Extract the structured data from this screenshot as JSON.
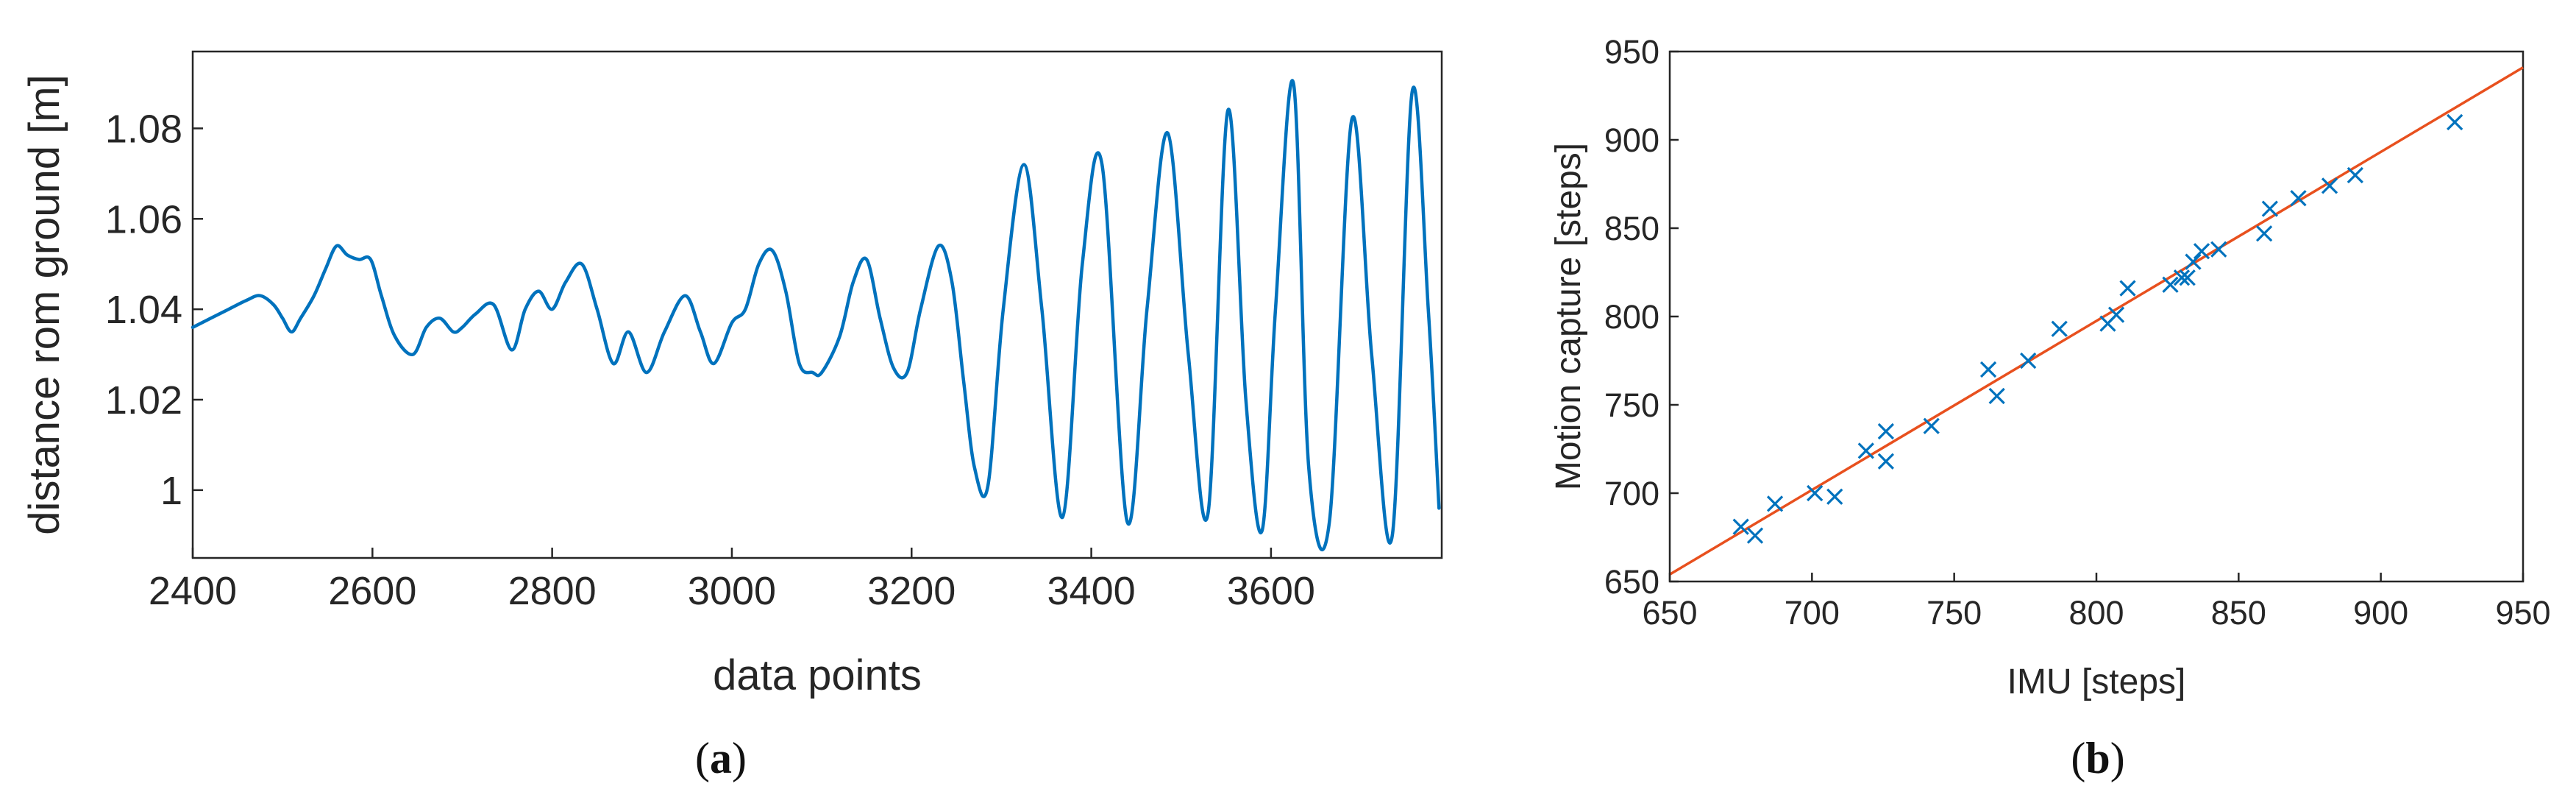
{
  "chart_data": [
    {
      "type": "line",
      "panel_label": "(a)",
      "panel_letter": "a",
      "xlabel": "data points",
      "ylabel": "distance rom ground [m]",
      "xlim": [
        2400,
        3790
      ],
      "ylim": [
        0.985,
        1.097
      ],
      "xticks": [
        2400,
        2600,
        2800,
        3000,
        3200,
        3400,
        3600
      ],
      "xtick_labels": [
        "2400",
        "2600",
        "2800",
        "3000",
        "3200",
        "3400",
        "3600"
      ],
      "yticks": [
        1.0,
        1.02,
        1.04,
        1.06,
        1.08
      ],
      "ytick_labels": [
        "1",
        "1.02",
        "1.04",
        "1.06",
        "1.08"
      ],
      "grid": false,
      "series": [
        {
          "color": "#0072bd",
          "x": [
            2400,
            2420,
            2440,
            2460,
            2475,
            2490,
            2500,
            2510,
            2520,
            2535,
            2548,
            2560,
            2572,
            2585,
            2598,
            2610,
            2625,
            2645,
            2660,
            2675,
            2690,
            2700,
            2715,
            2735,
            2755,
            2770,
            2785,
            2800,
            2815,
            2833,
            2850,
            2868,
            2885,
            2905,
            2925,
            2948,
            2965,
            2980,
            3000,
            3015,
            3030,
            3045,
            3060,
            3075,
            3090,
            3100,
            3120,
            3135,
            3150,
            3165,
            3180,
            3195,
            3210,
            3230,
            3245,
            3258,
            3270,
            3285,
            3302,
            3325,
            3345,
            3368,
            3390,
            3412,
            3440,
            3462,
            3485,
            3508,
            3530,
            3552,
            3572,
            3590,
            3605,
            3625,
            3642,
            3665,
            3690,
            3712,
            3735,
            3757,
            3775,
            3787
          ],
          "y": [
            1.036,
            1.038,
            1.04,
            1.042,
            1.043,
            1.041,
            1.038,
            1.035,
            1.038,
            1.043,
            1.049,
            1.054,
            1.052,
            1.051,
            1.051,
            1.043,
            1.034,
            1.03,
            1.036,
            1.038,
            1.035,
            1.036,
            1.039,
            1.041,
            1.031,
            1.04,
            1.044,
            1.04,
            1.046,
            1.05,
            1.04,
            1.028,
            1.035,
            1.026,
            1.035,
            1.043,
            1.035,
            1.028,
            1.037,
            1.04,
            1.05,
            1.053,
            1.044,
            1.028,
            1.026,
            1.026,
            1.034,
            1.046,
            1.051,
            1.038,
            1.027,
            1.026,
            1.04,
            1.054,
            1.046,
            1.024,
            1.005,
            1.001,
            1.04,
            1.072,
            1.04,
            0.994,
            1.05,
            1.072,
            0.993,
            1.04,
            1.079,
            1.03,
            0.995,
            1.084,
            1.02,
            0.991,
            1.04,
            1.09,
            1.005,
            0.993,
            1.082,
            1.03,
            0.99,
            1.088,
            1.04,
            0.996
          ]
        }
      ]
    },
    {
      "type": "scatter",
      "panel_label": "(b)",
      "panel_letter": "b",
      "xlabel": "IMU [steps]",
      "ylabel": "Motion capture [steps]",
      "xlim": [
        650,
        950
      ],
      "ylim": [
        650,
        950
      ],
      "xticks": [
        650,
        700,
        750,
        800,
        850,
        900,
        950
      ],
      "xtick_labels": [
        "650",
        "700",
        "750",
        "800",
        "850",
        "900",
        "950"
      ],
      "yticks": [
        650,
        700,
        750,
        800,
        850,
        900,
        950
      ],
      "ytick_labels": [
        "650",
        "700",
        "750",
        "800",
        "850",
        "900",
        "950"
      ],
      "grid": false,
      "marker": "x",
      "marker_color": "#0072bd",
      "points": [
        [
          675,
          681
        ],
        [
          680,
          676
        ],
        [
          687,
          694
        ],
        [
          701,
          700
        ],
        [
          708,
          698
        ],
        [
          719,
          724
        ],
        [
          726,
          735
        ],
        [
          726,
          718
        ],
        [
          742,
          738
        ],
        [
          762,
          770
        ],
        [
          765,
          755
        ],
        [
          776,
          775
        ],
        [
          787,
          793
        ],
        [
          804,
          796
        ],
        [
          807,
          801
        ],
        [
          811,
          816
        ],
        [
          826,
          818
        ],
        [
          830,
          822
        ],
        [
          832,
          822
        ],
        [
          834,
          831
        ],
        [
          837,
          837
        ],
        [
          843,
          838
        ],
        [
          859,
          847
        ],
        [
          861,
          861
        ],
        [
          871,
          867
        ],
        [
          882,
          874
        ],
        [
          891,
          880
        ],
        [
          926,
          910
        ]
      ],
      "fit_line": {
        "color": "#e8501e",
        "x": [
          650,
          950
        ],
        "y": [
          654,
          941
        ]
      }
    }
  ]
}
